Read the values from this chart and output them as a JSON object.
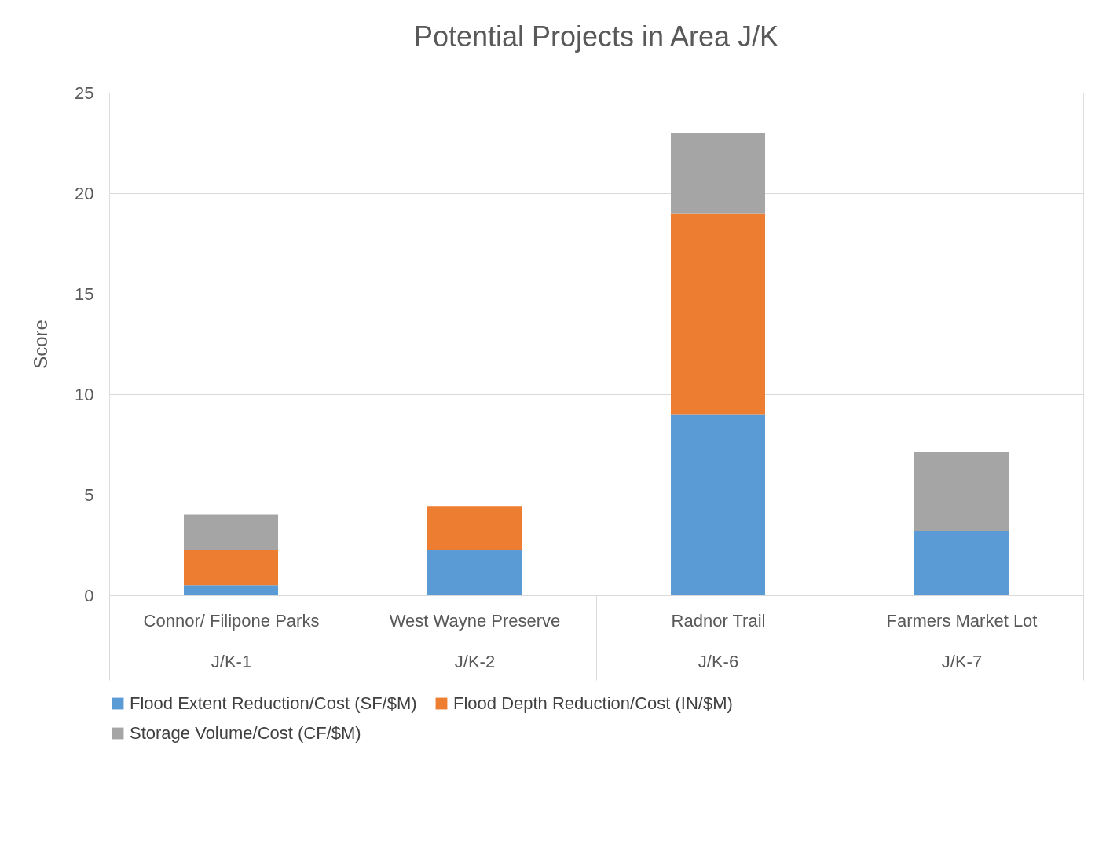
{
  "chart_data": {
    "type": "bar",
    "title": "Potential Projects in Area J/K",
    "ylabel": "Score",
    "stacked": true,
    "categories": [
      "Connor/ Filipone Parks\nJ/K-1",
      "West Wayne Preserve\nJ/K-2",
      "Radnor Trail\nJ/K-6",
      "Farmers Market Lot\nJ/K-7"
    ],
    "series": [
      {
        "name": "Flood Extent Reduction/Cost (SF/$M)",
        "color": "#5b9bd5",
        "values": [
          0.5,
          2.25,
          9,
          3.2
        ]
      },
      {
        "name": "Flood Depth Reduction/Cost (IN/$M)",
        "color": "#ed7d31",
        "values": [
          1.75,
          2.15,
          10,
          null
        ]
      },
      {
        "name": "Storage Volume/Cost (CF/$M)",
        "color": "#a5a5a5",
        "values": [
          1.75,
          null,
          4,
          3.95
        ]
      }
    ],
    "ylim": [
      0,
      25
    ],
    "yticks": [
      0,
      5,
      10,
      15,
      20,
      25
    ],
    "grid": "y",
    "legend": "bottom"
  }
}
